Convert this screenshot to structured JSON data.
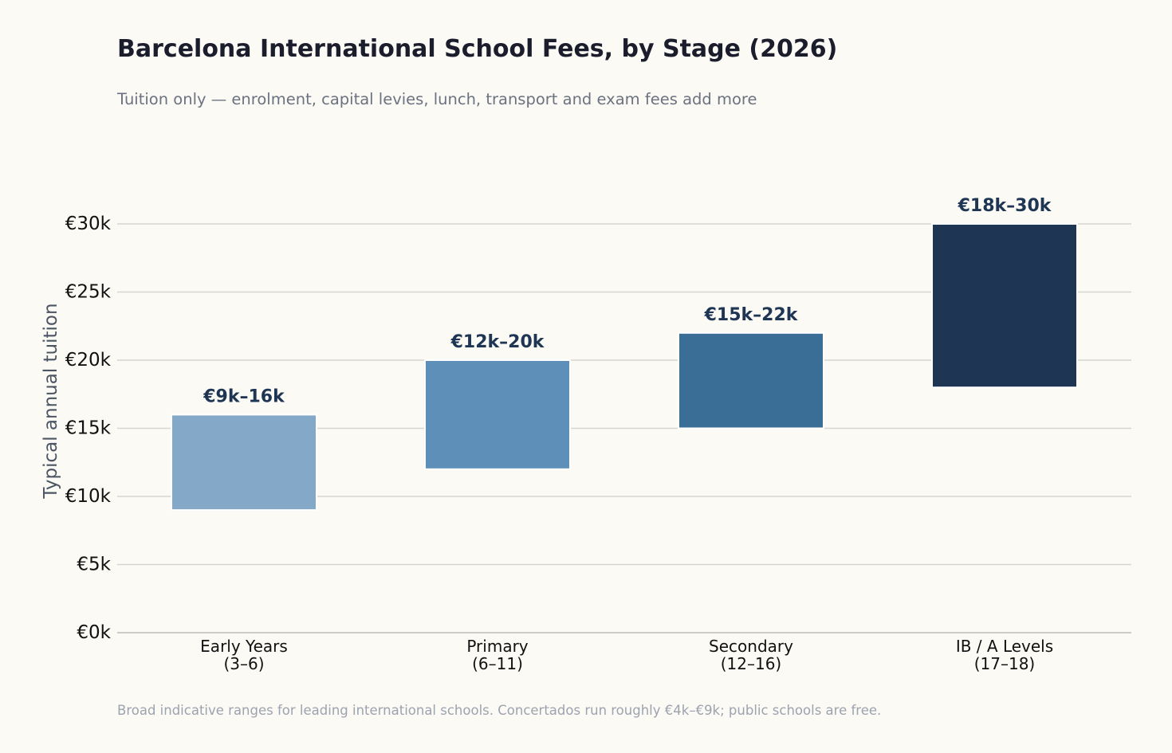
{
  "title": "Barcelona International School Fees, by Stage (2026)",
  "subtitle": "Tuition only — enrolment, capital levies, lunch, transport and exam fees add more",
  "footnote": "Broad indicative ranges for leading international schools. Concertados run roughly €4k–€9k; public schools are free.",
  "chart_data": {
    "type": "bar",
    "subtype": "floating-range",
    "ylabel": "Typical annual tuition",
    "xlabel": "",
    "ylim": [
      0,
      30
    ],
    "yticks": [
      0,
      5,
      10,
      15,
      20,
      25,
      30
    ],
    "ytick_labels": [
      "€0k",
      "€5k",
      "€10k",
      "€15k",
      "€20k",
      "€25k",
      "€30k"
    ],
    "grid": "horizontal",
    "categories": [
      {
        "line1": "Early Years",
        "line2": "(3–6)"
      },
      {
        "line1": "Primary",
        "line2": "(6–11)"
      },
      {
        "line1": "Secondary",
        "line2": "(12–16)"
      },
      {
        "line1": "IB / A Levels",
        "line2": "(17–18)"
      }
    ],
    "ranges": [
      {
        "low": 9,
        "high": 16,
        "label": "€9k–16k",
        "color": "#84a8c8"
      },
      {
        "low": 12,
        "high": 20,
        "label": "€12k–20k",
        "color": "#5e8fb8"
      },
      {
        "low": 15,
        "high": 22,
        "label": "€15k–22k",
        "color": "#3b6e96"
      },
      {
        "low": 18,
        "high": 30,
        "label": "€18k–30k",
        "color": "#1e3554"
      }
    ],
    "colors": {
      "grid": "#d6d6d0",
      "axis": "#c4c4c4",
      "value_label": "#1e3554",
      "ylabel": "#4b5563"
    }
  }
}
